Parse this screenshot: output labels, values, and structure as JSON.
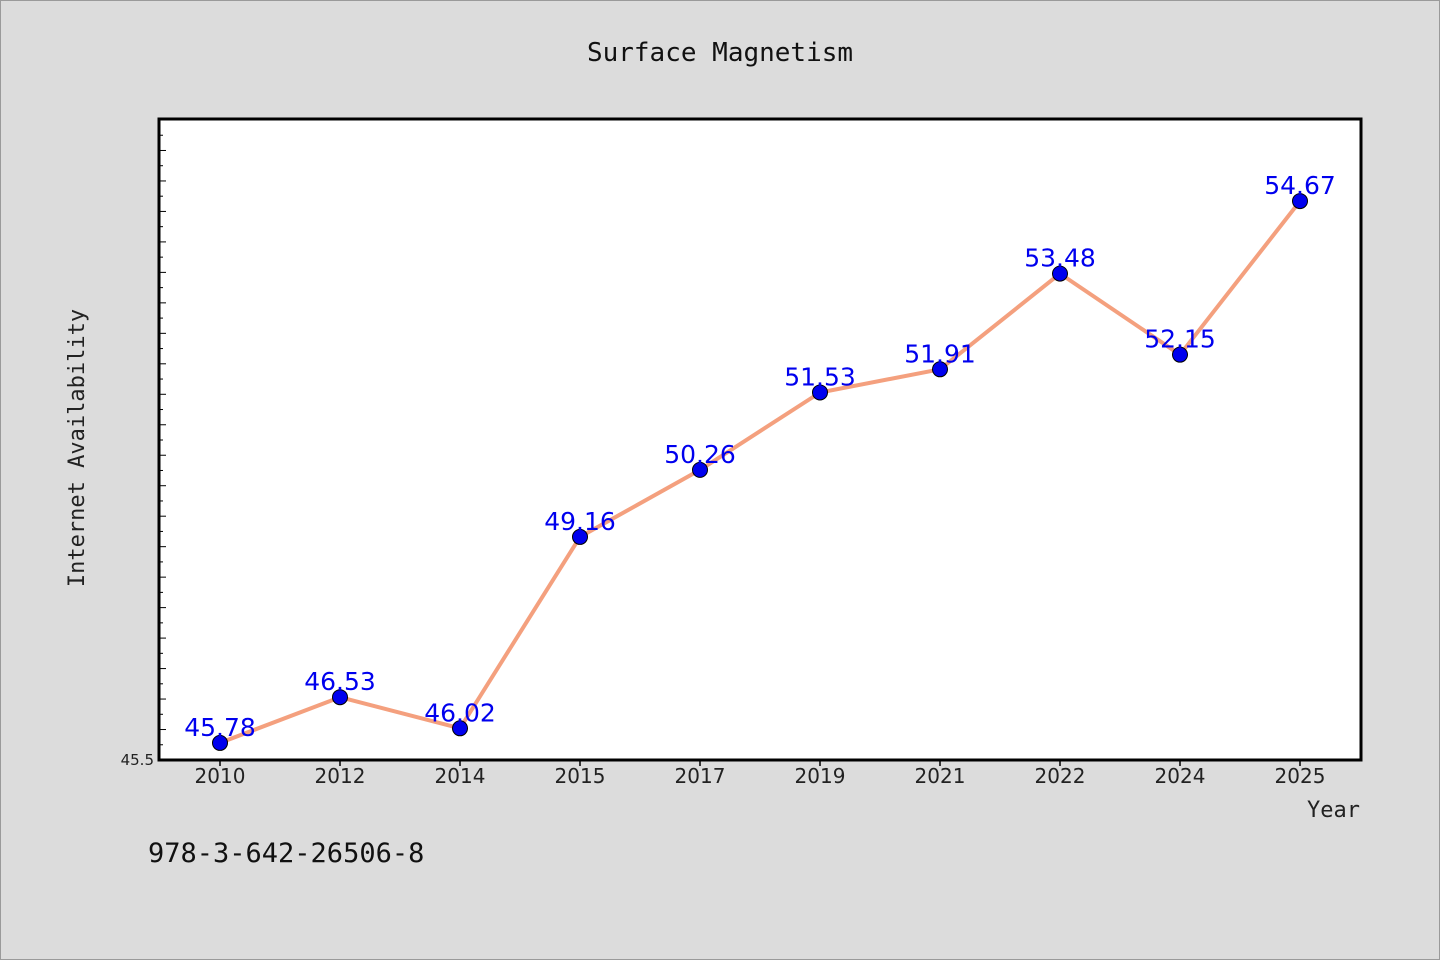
{
  "chart_data": {
    "type": "line",
    "title": "Surface Magnetism",
    "xlabel": "Year",
    "ylabel": "Internet Availability",
    "categories": [
      "2010",
      "2012",
      "2014",
      "2015",
      "2017",
      "2019",
      "2021",
      "2022",
      "2024",
      "2025"
    ],
    "series": [
      {
        "values": [
          45.78,
          46.53,
          46.02,
          49.16,
          50.26,
          51.53,
          51.91,
          53.48,
          52.15,
          54.67
        ],
        "labels": [
          "45.78",
          "46.53",
          "46.02",
          "49.16",
          "50.26",
          "51.53",
          "51.91",
          "53.48",
          "52.15",
          "54.67"
        ]
      }
    ],
    "ylim": [
      45.5,
      56
    ],
    "yticks_labeled": [
      "45.5"
    ],
    "grid": false,
    "line_color": "#f4a07e",
    "marker_color": "#0000ee",
    "label_color": "#0000ee"
  },
  "footer": {
    "isbn": "978-3-642-26506-8"
  }
}
